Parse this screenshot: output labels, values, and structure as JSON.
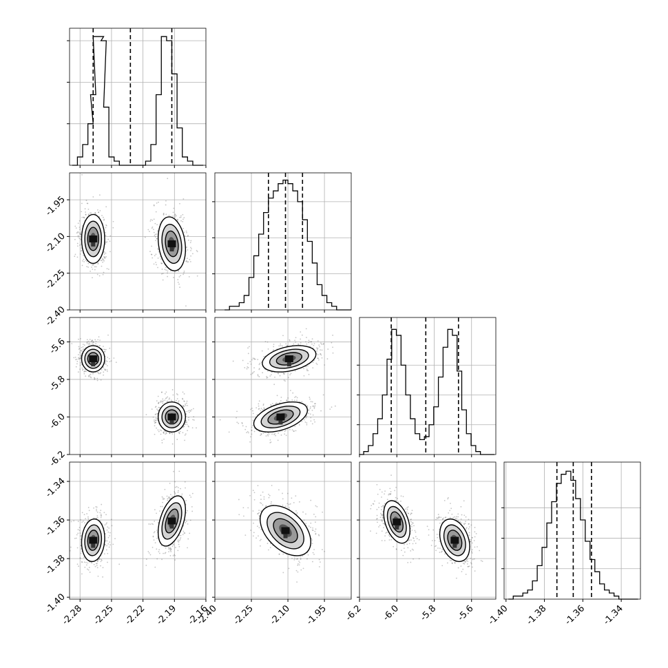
{
  "figure": {
    "background": "#ffffff"
  },
  "chart_data": {
    "type": "corner",
    "n_params": 4,
    "colors": {
      "hist": "#000000",
      "quantile": "#000000",
      "density": "#000000",
      "contour_fill": "#bdbdbd",
      "grid": "#b0b0b0"
    },
    "grid": true,
    "quantile_lines": "dashed",
    "params": [
      {
        "range": [
          -2.29,
          -2.16
        ],
        "ticks": [
          -2.28,
          -2.25,
          -2.22,
          -2.19,
          -2.16
        ],
        "tick_labels": [
          "-2.28",
          "-2.25",
          "-2.22",
          "-2.19",
          "-2.16"
        ],
        "quantiles": [
          -2.2675,
          -2.232,
          -2.1925
        ],
        "hist_x": [
          -2.285,
          -2.28,
          -2.275,
          -2.27,
          -2.2675,
          -2.265,
          -2.26,
          -2.2575,
          -2.255,
          -2.25,
          -2.245,
          -2.24,
          -2.235,
          -2.23,
          -2.225,
          -2.22,
          -2.215,
          -2.21,
          -2.205,
          -2.2,
          -2.195,
          -2.19,
          -2.185,
          -2.18,
          -2.175,
          -2.17,
          -2.165
        ],
        "hist_y": [
          0,
          2,
          5,
          10,
          17,
          31,
          31,
          30,
          14,
          2,
          1,
          0,
          0,
          0,
          0,
          0,
          1,
          5,
          17,
          31,
          30,
          22,
          9,
          2,
          1,
          0,
          0
        ],
        "ymax": 33,
        "hist_ticks": [
          10,
          20,
          30
        ]
      },
      {
        "range": [
          -2.4,
          -1.84
        ],
        "ticks": [
          -2.4,
          -2.25,
          -2.1,
          -1.95
        ],
        "tick_labels": [
          "-2.40",
          "-2.25",
          "-2.10",
          "-1.95"
        ],
        "quantiles": [
          -2.18,
          -2.11,
          -2.04
        ],
        "hist_x": [
          -2.35,
          -2.33,
          -2.31,
          -2.29,
          -2.27,
          -2.25,
          -2.23,
          -2.21,
          -2.19,
          -2.17,
          -2.15,
          -2.13,
          -2.11,
          -2.09,
          -2.07,
          -2.05,
          -2.03,
          -2.01,
          -1.99,
          -1.97,
          -1.95,
          -1.93,
          -1.91,
          -1.89,
          -1.87,
          -1.85
        ],
        "hist_y": [
          0,
          1,
          1,
          2,
          4,
          9,
          15,
          21,
          27,
          31,
          33,
          35,
          36,
          35,
          33,
          30,
          25,
          19,
          13,
          7,
          4,
          2,
          1,
          0,
          0,
          0
        ],
        "ymax": 38,
        "hist_ticks": [
          10,
          20,
          30
        ]
      },
      {
        "range": [
          -6.2,
          -5.47
        ],
        "ticks": [
          -6.2,
          -6.0,
          -5.8,
          -5.6
        ],
        "tick_labels": [
          "-6.2",
          "-6.0",
          "-5.8",
          "-5.6"
        ],
        "quantiles": [
          -6.03,
          -5.845,
          -5.67
        ],
        "hist_x": [
          -6.19,
          -6.165,
          -6.14,
          -6.115,
          -6.09,
          -6.065,
          -6.04,
          -6.015,
          -5.99,
          -5.965,
          -5.94,
          -5.915,
          -5.89,
          -5.865,
          -5.84,
          -5.815,
          -5.79,
          -5.765,
          -5.74,
          -5.715,
          -5.69,
          -5.665,
          -5.64,
          -5.615,
          -5.59,
          -5.565,
          -5.54,
          -5.515,
          -5.49
        ],
        "hist_y": [
          0,
          1,
          3,
          7,
          12,
          20,
          32,
          42,
          40,
          30,
          20,
          12,
          7,
          5,
          6,
          10,
          16,
          26,
          36,
          42,
          40,
          28,
          15,
          7,
          3,
          1,
          0,
          0,
          0
        ],
        "ymax": 46,
        "hist_ticks": [
          10,
          20,
          30
        ]
      },
      {
        "range": [
          -1.401,
          -1.33
        ],
        "ticks": [
          -1.4,
          -1.38,
          -1.36,
          -1.34
        ],
        "tick_labels": [
          "-1.40",
          "-1.38",
          "-1.36",
          "-1.34"
        ],
        "quantiles": [
          -1.3735,
          -1.365,
          -1.3555
        ],
        "hist_x": [
          -1.3975,
          -1.395,
          -1.3925,
          -1.39,
          -1.3875,
          -1.385,
          -1.3825,
          -1.38,
          -1.3775,
          -1.375,
          -1.3725,
          -1.37,
          -1.3675,
          -1.365,
          -1.3625,
          -1.36,
          -1.3575,
          -1.355,
          -1.3525,
          -1.35,
          -1.3475,
          -1.345,
          -1.3425,
          -1.34,
          -1.3375,
          -1.335,
          -1.3325
        ],
        "hist_y": [
          0,
          1,
          1,
          2,
          3,
          6,
          11,
          17,
          25,
          32,
          38,
          41,
          42,
          39,
          33,
          26,
          19,
          13,
          9,
          5,
          3,
          2,
          1,
          0,
          0,
          0,
          0
        ],
        "ymax": 45,
        "hist_ticks": [
          10,
          20,
          30
        ]
      }
    ],
    "blobs": [
      {
        "xi": 0,
        "yi": 1,
        "clusters": [
          {
            "cx": -2.2675,
            "cy": -2.11,
            "sx": 0.0055,
            "sy": 0.05,
            "rho": 0.0
          },
          {
            "cx": -2.1925,
            "cy": -2.13,
            "sx": 0.0065,
            "sy": 0.055,
            "rho": -0.2
          }
        ]
      },
      {
        "xi": 0,
        "yi": 2,
        "clusters": [
          {
            "cx": -2.2675,
            "cy": -5.69,
            "sx": 0.0055,
            "sy": 0.035,
            "rho": 0.0
          },
          {
            "cx": -2.1925,
            "cy": -6.0,
            "sx": 0.0065,
            "sy": 0.04,
            "rho": 0.0
          }
        ]
      },
      {
        "xi": 0,
        "yi": 3,
        "clusters": [
          {
            "cx": -2.2675,
            "cy": -1.3705,
            "sx": 0.0055,
            "sy": 0.0055,
            "rho": 0.1
          },
          {
            "cx": -2.1925,
            "cy": -1.3605,
            "sx": 0.0065,
            "sy": 0.0065,
            "rho": 0.45
          }
        ]
      },
      {
        "xi": 1,
        "yi": 2,
        "clusters": [
          {
            "cx": -2.095,
            "cy": -5.69,
            "sx": 0.055,
            "sy": 0.035,
            "rho": 0.35
          },
          {
            "cx": -2.13,
            "cy": -6.0,
            "sx": 0.055,
            "sy": 0.04,
            "rho": 0.45
          }
        ]
      },
      {
        "xi": 1,
        "yi": 3,
        "clusters": [
          {
            "cx": -2.11,
            "cy": -1.3655,
            "sx": 0.052,
            "sy": 0.0065,
            "rho": -0.45
          }
        ]
      },
      {
        "xi": 2,
        "yi": 3,
        "clusters": [
          {
            "cx": -6.0,
            "cy": -1.361,
            "sx": 0.035,
            "sy": 0.0055,
            "rho": -0.4
          },
          {
            "cx": -5.69,
            "cy": -1.3705,
            "sx": 0.04,
            "sy": 0.0055,
            "rho": -0.3
          }
        ]
      }
    ]
  }
}
